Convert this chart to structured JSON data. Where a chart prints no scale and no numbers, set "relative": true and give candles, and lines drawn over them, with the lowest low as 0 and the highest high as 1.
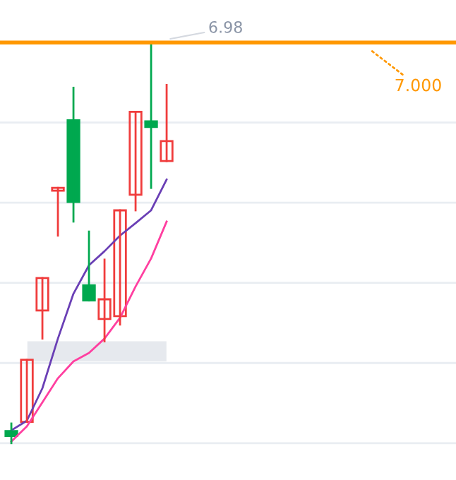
{
  "chart_data": {
    "type": "candlestick",
    "relative": true,
    "grid": "y",
    "categories": [
      null,
      null,
      null,
      null,
      null,
      null,
      null,
      null,
      null,
      null,
      null
    ],
    "ohlc": [
      [
        0.03,
        0.049,
        0,
        0.018
      ],
      [
        0.053,
        0.208,
        0.053,
        0.208
      ],
      [
        0.331,
        0.412,
        0.261,
        0.412
      ],
      [
        0.63,
        0.637,
        0.518,
        0.637
      ],
      [
        0.806,
        0.887,
        0.553,
        0.602
      ],
      [
        0.394,
        0.528,
        0.356,
        0.356
      ],
      [
        0.31,
        0.458,
        0.254,
        0.359
      ],
      [
        0.317,
        0.581,
        0.296,
        0.581
      ],
      [
        0.62,
        0.827,
        0.581,
        0.827
      ],
      [
        0.803,
        1,
        0.637,
        0.789
      ],
      [
        0.704,
        0.894,
        0.704,
        0.754
      ]
    ],
    "colors": [
      "#00a84f",
      "#f03c3c",
      "#f03c3c",
      "#f03c3c",
      "#00a84f",
      "#00a84f",
      "#f03c3c",
      "#f03c3c",
      "#f03c3c",
      "#00a84f",
      "#f03c3c"
    ],
    "series": [
      {
        "type": "line",
        "color": "#6a3fb5",
        "values": [
          0.032,
          0.056,
          0.137,
          0.261,
          0.373,
          0.444,
          0.479,
          0.518,
          0.549,
          0.581,
          0.658
        ]
      },
      {
        "type": "line",
        "color": "#ff3fa0",
        "values": [
          0.004,
          0.042,
          0.102,
          0.162,
          0.204,
          0.225,
          0.261,
          0.313,
          0.391,
          0.461,
          0.553
        ]
      }
    ],
    "ref_lines": [
      {
        "axis": "y",
        "value": 1,
        "color": "#ff9800",
        "line_style": "solid"
      }
    ],
    "bands": [
      {
        "axis": "y",
        "from": 0.204,
        "to": 0.254,
        "color": "#e6e9ee"
      }
    ],
    "annotations": [
      {
        "text": "6.98",
        "y": 1
      },
      {
        "text": "7.000",
        "y": 1
      }
    ]
  }
}
